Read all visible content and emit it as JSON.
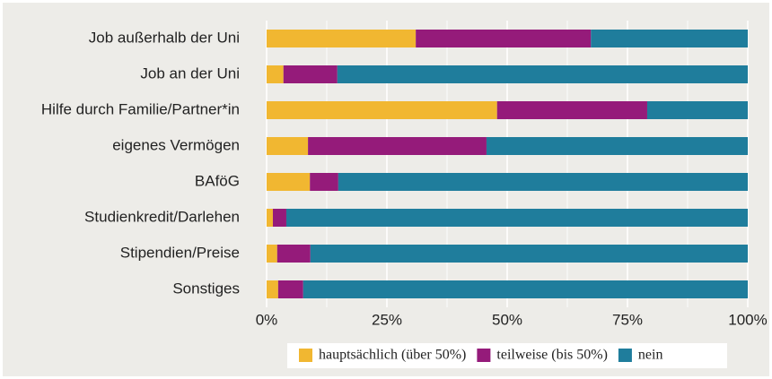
{
  "chart_data": {
    "type": "stacked-bar-horizontal",
    "categories": [
      "Job außerhalb der Uni",
      "Job an der Uni",
      "Hilfe durch Familie/Partner*in",
      "eigenes Vermögen",
      "BAföG",
      "Studienkredit/Darlehen",
      "Stipendien/Preise",
      "Sonstiges"
    ],
    "series": [
      {
        "name": "hauptsächlich (über 50%)",
        "color": "#f1b731",
        "values": [
          31.0,
          3.5,
          47.9,
          8.6,
          9.0,
          1.3,
          2.2,
          2.4
        ]
      },
      {
        "name": "teilweise (bis 50%)",
        "color": "#951b7a",
        "values": [
          36.4,
          11.2,
          31.2,
          37.1,
          5.9,
          2.8,
          6.9,
          5.2
        ]
      },
      {
        "name": "nein",
        "color": "#1f7d9c",
        "values": [
          32.6,
          85.3,
          20.9,
          54.3,
          85.1,
          95.9,
          90.9,
          92.4
        ]
      }
    ],
    "xlim": [
      0,
      100
    ],
    "xticks": [
      {
        "value": 0,
        "label": "0%"
      },
      {
        "value": 25,
        "label": "25%"
      },
      {
        "value": 50,
        "label": "50%"
      },
      {
        "value": 75,
        "label": "75%"
      },
      {
        "value": 100,
        "label": "100%"
      }
    ],
    "grid": true,
    "legend": "bottom"
  }
}
